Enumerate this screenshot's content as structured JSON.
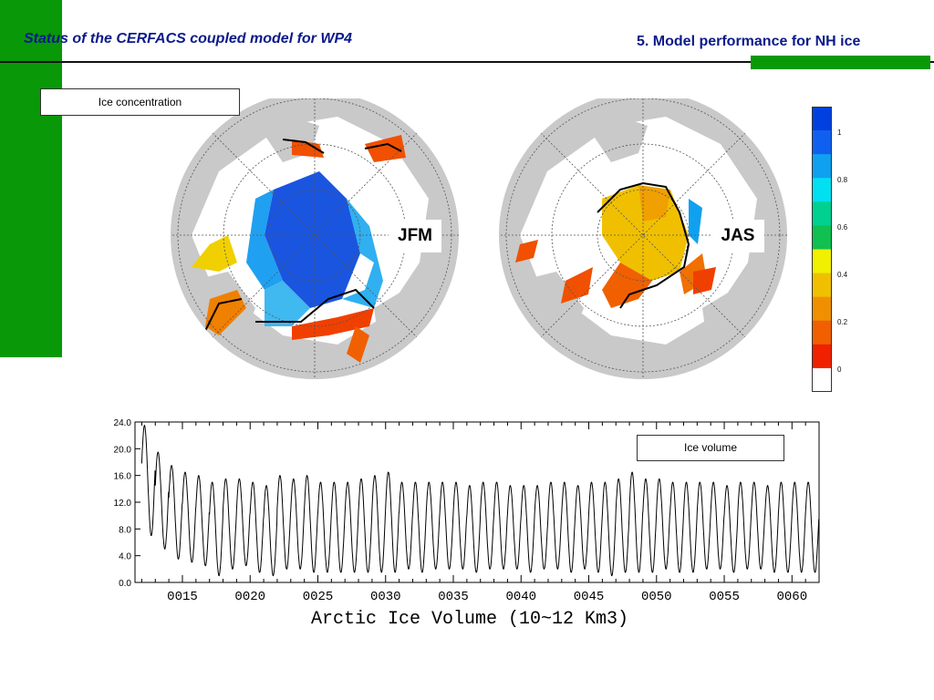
{
  "header": {
    "left_title": "Status of the CERFACS coupled model for WP4",
    "right_title": "5. Model performance for NH ice"
  },
  "colors": {
    "accent_green": "#089808",
    "title_blue": "#0b1a8a"
  },
  "panels": {
    "ice_label": "Ice concentration",
    "volume_label": "Ice volume",
    "maps": [
      {
        "season": "JFM"
      },
      {
        "season": "JAS"
      }
    ]
  },
  "colorbar": {
    "labels": [
      "1",
      "0.8",
      "0.6",
      "0.4",
      "0.2",
      "0"
    ],
    "colors": [
      "#0040e0",
      "#1060f0",
      "#10a0f0",
      "#00e0f0",
      "#00d090",
      "#10c050",
      "#f0f000",
      "#f0c000",
      "#f09000",
      "#f06000",
      "#f02000",
      "#ffffff"
    ]
  },
  "chart_data": {
    "type": "line",
    "xlabel": "Arctic Ice Volume (10~12 Km3)",
    "ylabel": "",
    "xlim": [
      11.5,
      62
    ],
    "ylim": [
      0,
      24
    ],
    "x_ticks": [
      "0015",
      "0020",
      "0025",
      "0030",
      "0035",
      "0040",
      "0045",
      "0050",
      "0055",
      "0060"
    ],
    "x_tick_values": [
      15,
      20,
      25,
      30,
      35,
      40,
      45,
      50,
      55,
      60
    ],
    "y_ticks": [
      "0.0",
      "4.0",
      "8.0",
      "12.0",
      "16.0",
      "20.0",
      "24.0"
    ],
    "y_tick_values": [
      0,
      4,
      8,
      12,
      16,
      20,
      24
    ],
    "series": [
      {
        "start_year": 12,
        "peak_months": "March",
        "annual_max": [
          23.5,
          19.5,
          17.5,
          16.5,
          16,
          15,
          15.5,
          15.5,
          15,
          14.5,
          16,
          15.5,
          16,
          15,
          15,
          15,
          15.5,
          16,
          16.5,
          15,
          15,
          15,
          15,
          15,
          14.5,
          15,
          15,
          14.5,
          14.5,
          14.5,
          15,
          15,
          14.5,
          15,
          15,
          15.5,
          16.5,
          15.5,
          15.5,
          15,
          15,
          15,
          15,
          14.5,
          15,
          15,
          14.5,
          15,
          15,
          15
        ],
        "annual_min": [
          7,
          5,
          3.5,
          3,
          2.5,
          1,
          2,
          2.5,
          1.5,
          1,
          2,
          2,
          1.5,
          1.5,
          1.5,
          1.5,
          1.5,
          1.5,
          1.5,
          2,
          1.5,
          2,
          2,
          2,
          1.5,
          2,
          2,
          2,
          1.5,
          2,
          2,
          1.5,
          2,
          1.5,
          1,
          1.5,
          1.5,
          1.5,
          2,
          1.5,
          1.5,
          2,
          2,
          1.5,
          2,
          2,
          1.5,
          1.5,
          1.5,
          1.5
        ]
      }
    ]
  }
}
